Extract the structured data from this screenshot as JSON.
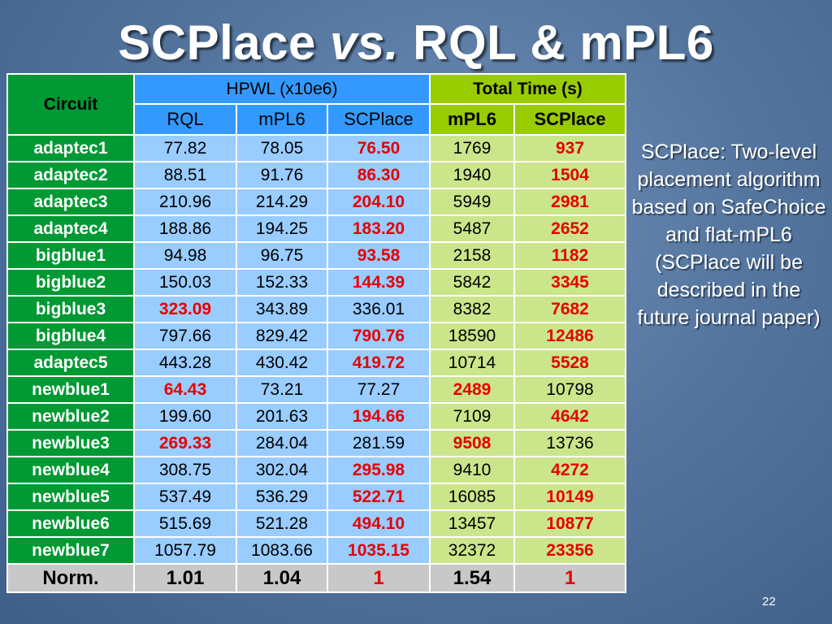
{
  "title": {
    "main": "SCPlace",
    "em": "vs.",
    "rest": "RQL & mPL6"
  },
  "table": {
    "header": {
      "circuit": "Circuit",
      "hpwl_group": "HPWL (x10e6)",
      "time_group": "Total Time (s)",
      "hpwl_cols": [
        "RQL",
        "mPL6",
        "SCPlace"
      ],
      "time_cols": [
        "mPL6",
        "SCPlace"
      ]
    },
    "rows": [
      {
        "circuit": "adaptec1",
        "rql": "77.82",
        "mpl6": "78.05",
        "scplace": "76.50",
        "t_mpl6": "1769",
        "t_scplace": "937",
        "best_hpwl": "scplace",
        "best_time": "scplace"
      },
      {
        "circuit": "adaptec2",
        "rql": "88.51",
        "mpl6": "91.76",
        "scplace": "86.30",
        "t_mpl6": "1940",
        "t_scplace": "1504",
        "best_hpwl": "scplace",
        "best_time": "scplace"
      },
      {
        "circuit": "adaptec3",
        "rql": "210.96",
        "mpl6": "214.29",
        "scplace": "204.10",
        "t_mpl6": "5949",
        "t_scplace": "2981",
        "best_hpwl": "scplace",
        "best_time": "scplace"
      },
      {
        "circuit": "adaptec4",
        "rql": "188.86",
        "mpl6": "194.25",
        "scplace": "183.20",
        "t_mpl6": "5487",
        "t_scplace": "2652",
        "best_hpwl": "scplace",
        "best_time": "scplace"
      },
      {
        "circuit": "bigblue1",
        "rql": "94.98",
        "mpl6": "96.75",
        "scplace": "93.58",
        "t_mpl6": "2158",
        "t_scplace": "1182",
        "best_hpwl": "scplace",
        "best_time": "scplace"
      },
      {
        "circuit": "bigblue2",
        "rql": "150.03",
        "mpl6": "152.33",
        "scplace": "144.39",
        "t_mpl6": "5842",
        "t_scplace": "3345",
        "best_hpwl": "scplace",
        "best_time": "scplace"
      },
      {
        "circuit": "bigblue3",
        "rql": "323.09",
        "mpl6": "343.89",
        "scplace": "336.01",
        "t_mpl6": "8382",
        "t_scplace": "7682",
        "best_hpwl": "rql",
        "best_time": "scplace"
      },
      {
        "circuit": "bigblue4",
        "rql": "797.66",
        "mpl6": "829.42",
        "scplace": "790.76",
        "t_mpl6": "18590",
        "t_scplace": "12486",
        "best_hpwl": "scplace",
        "best_time": "scplace"
      },
      {
        "circuit": "adaptec5",
        "rql": "443.28",
        "mpl6": "430.42",
        "scplace": "419.72",
        "t_mpl6": "10714",
        "t_scplace": "5528",
        "best_hpwl": "scplace",
        "best_time": "scplace"
      },
      {
        "circuit": "newblue1",
        "rql": "64.43",
        "mpl6": "73.21",
        "scplace": "77.27",
        "t_mpl6": "2489",
        "t_scplace": "10798",
        "best_hpwl": "rql",
        "best_time": "mpl6"
      },
      {
        "circuit": "newblue2",
        "rql": "199.60",
        "mpl6": "201.63",
        "scplace": "194.66",
        "t_mpl6": "7109",
        "t_scplace": "4642",
        "best_hpwl": "scplace",
        "best_time": "scplace"
      },
      {
        "circuit": "newblue3",
        "rql": "269.33",
        "mpl6": "284.04",
        "scplace": "281.59",
        "t_mpl6": "9508",
        "t_scplace": "13736",
        "best_hpwl": "rql",
        "best_time": "mpl6"
      },
      {
        "circuit": "newblue4",
        "rql": "308.75",
        "mpl6": "302.04",
        "scplace": "295.98",
        "t_mpl6": "9410",
        "t_scplace": "4272",
        "best_hpwl": "scplace",
        "best_time": "scplace"
      },
      {
        "circuit": "newblue5",
        "rql": "537.49",
        "mpl6": "536.29",
        "scplace": "522.71",
        "t_mpl6": "16085",
        "t_scplace": "10149",
        "best_hpwl": "scplace",
        "best_time": "scplace"
      },
      {
        "circuit": "newblue6",
        "rql": "515.69",
        "mpl6": "521.28",
        "scplace": "494.10",
        "t_mpl6": "13457",
        "t_scplace": "10877",
        "best_hpwl": "scplace",
        "best_time": "scplace"
      },
      {
        "circuit": "newblue7",
        "rql": "1057.79",
        "mpl6": "1083.66",
        "scplace": "1035.15",
        "t_mpl6": "32372",
        "t_scplace": "23356",
        "best_hpwl": "scplace",
        "best_time": "scplace"
      }
    ],
    "norm": {
      "label": "Norm.",
      "rql": "1.01",
      "mpl6": "1.04",
      "scplace": "1",
      "t_mpl6": "1.54",
      "t_scplace": "1"
    }
  },
  "side_note": {
    "line1": "SCPlace: Two-level placement algorithm based on SafeChoice and flat-mPL6",
    "line2": "(SCPlace will be described in the future journal paper)"
  },
  "page_number": "22",
  "colors": {
    "highlight": "#e60000",
    "circuit_col": "#009933",
    "hpwl_header": "#3399ff",
    "hpwl_cell": "#99ccff",
    "time_header": "#99cc00",
    "time_cell": "#cbe58b"
  }
}
